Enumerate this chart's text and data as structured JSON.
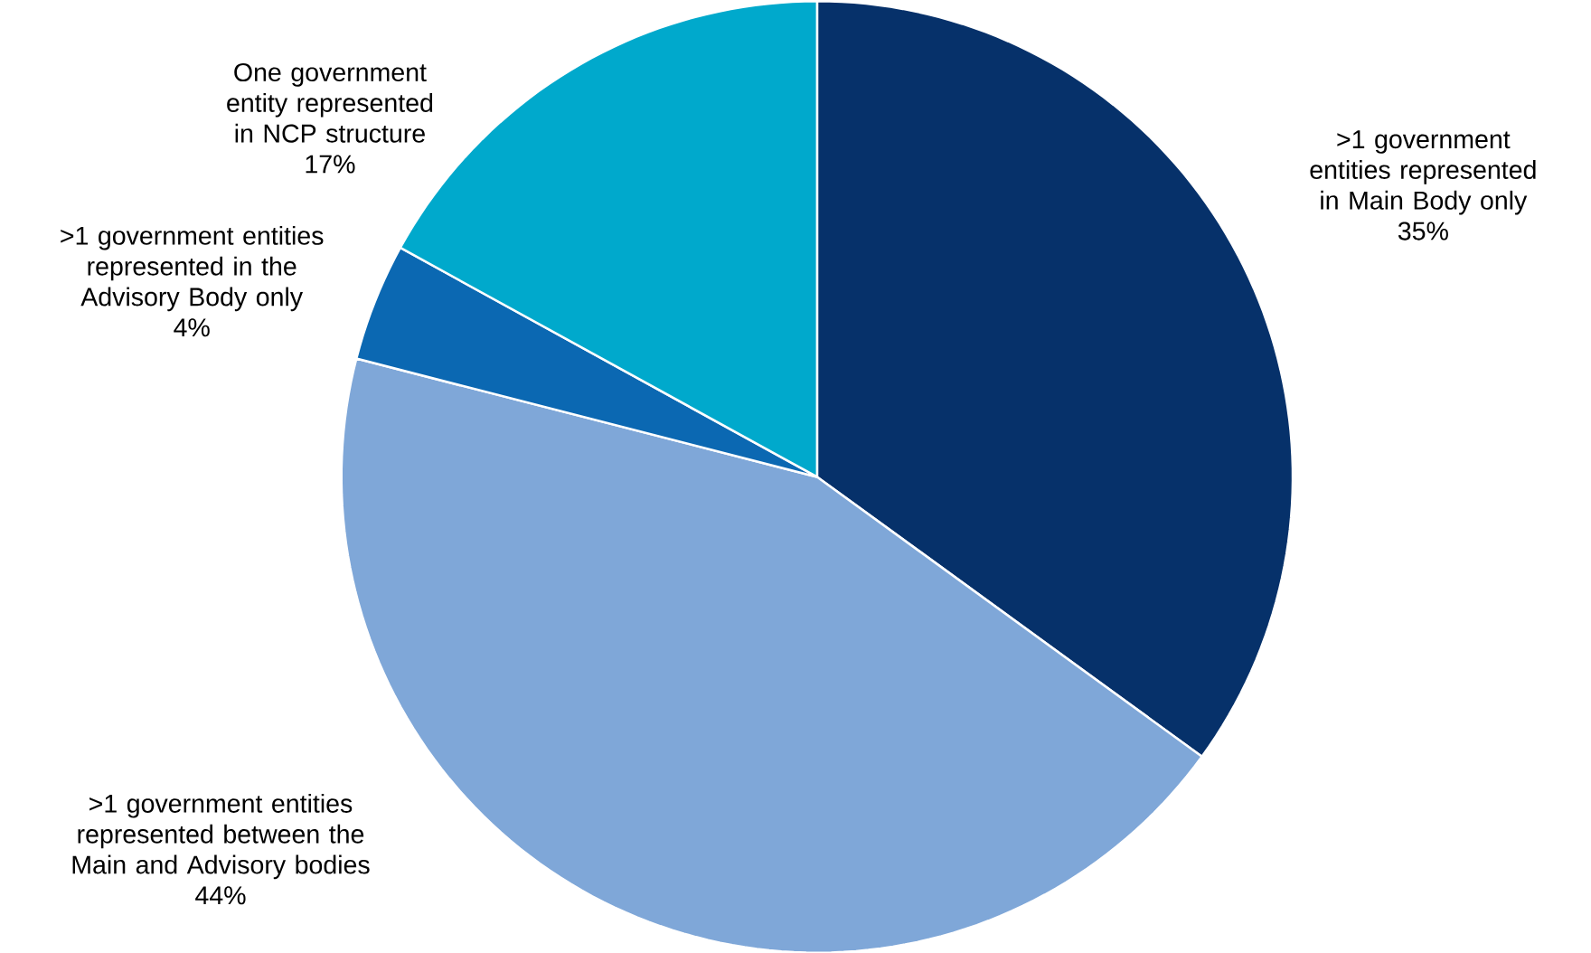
{
  "chart_data": {
    "type": "pie",
    "categories": [
      ">1 government entities represented in Main Body only",
      ">1 government entities represented between the Main and Advisory bodies",
      ">1 government entities represented in the Advisory Body only",
      "One government entity represented in NCP structure"
    ],
    "values": [
      35,
      44,
      4,
      17
    ],
    "value_labels": [
      "35%",
      "44%",
      "4%",
      "17%"
    ],
    "colors": [
      "#06316a",
      "#7fa7d8",
      "#0b68b2",
      "#00a9cc"
    ]
  }
}
